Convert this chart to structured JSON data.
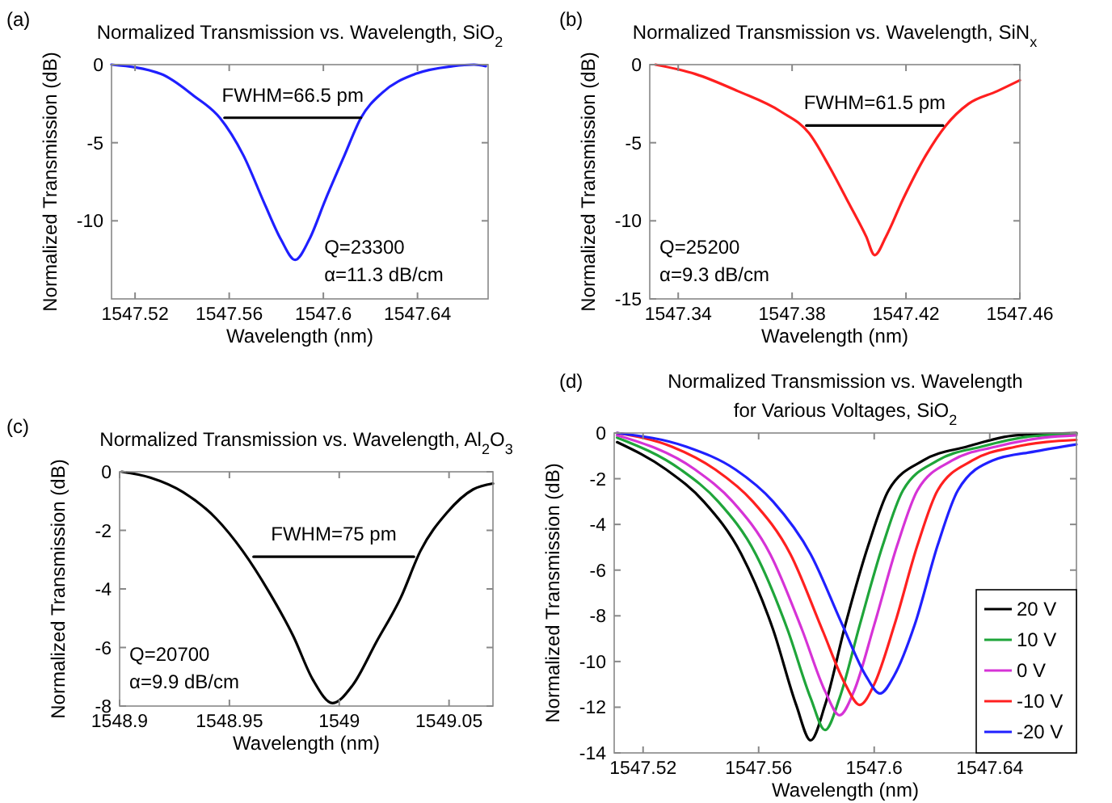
{
  "chart_data": [
    {
      "type": "line",
      "title": "Normalized Transmission vs. Wavelength, SiO$_{2}$",
      "xlabel": "Wavelength (nm)",
      "ylabel": "Normalized Transmission (dB)",
      "xlim": [
        1547.51,
        1547.67
      ],
      "xticks": [
        1547.52,
        1547.56,
        1547.6,
        1547.64
      ],
      "ylim": [
        -15,
        0
      ],
      "yticks": [
        -10,
        -5,
        0
      ],
      "grid": false,
      "legend": false,
      "series": [
        {
          "color": "#1f1fff",
          "x": [
            1547.51,
            1547.531,
            1547.545,
            1547.556,
            1547.566,
            1547.575,
            1547.582,
            1547.588,
            1547.594,
            1547.601,
            1547.609,
            1547.616,
            1547.625,
            1547.639,
            1547.655,
            1547.664,
            1547.669
          ],
          "values": [
            0,
            -0.6,
            -2.0,
            -3.4,
            -5.8,
            -8.9,
            -11.2,
            -12.5,
            -11.2,
            -8.6,
            -5.8,
            -3.4,
            -1.8,
            -0.6,
            -0.1,
            0,
            -0.1
          ]
        },
        {
          "color": "#000000",
          "x": [
            1547.558,
            1547.616
          ],
          "values": [
            -3.4,
            -3.4
          ]
        }
      ],
      "annotations": [
        "(a)",
        "FWHM=66.5 pm",
        "Q=23300",
        "α=11.3 dB/cm"
      ]
    },
    {
      "type": "line",
      "title": "Normalized Transmission vs. Wavelength, SiN$_{x}$",
      "xlabel": "Wavelength (nm)",
      "ylabel": "Normalized Transmission (dB)",
      "xlim": [
        1547.33,
        1547.46
      ],
      "xticks": [
        1547.34,
        1547.38,
        1547.42,
        1547.46
      ],
      "ylim": [
        -15,
        0
      ],
      "yticks": [
        -15,
        -10,
        -5,
        0
      ],
      "grid": false,
      "legend": false,
      "series": [
        {
          "color": "#ff1f1f",
          "x": [
            1547.332,
            1547.346,
            1547.361,
            1547.376,
            1547.386,
            1547.393,
            1547.4,
            1547.406,
            1547.409,
            1547.413,
            1547.419,
            1547.427,
            1547.434,
            1547.442,
            1547.452,
            1547.46
          ],
          "values": [
            0,
            -0.6,
            -1.7,
            -3.0,
            -4.4,
            -6.5,
            -8.9,
            -11.0,
            -12.2,
            -11.0,
            -8.6,
            -5.8,
            -3.9,
            -2.5,
            -1.7,
            -1.0
          ]
        },
        {
          "color": "#000000",
          "x": [
            1547.385,
            1547.433
          ],
          "values": [
            -3.9,
            -3.9
          ]
        }
      ],
      "annotations": [
        "(b)",
        "FWHM=61.5 pm",
        "Q=25200",
        "α=9.3 dB/cm"
      ]
    },
    {
      "type": "line",
      "title": "Normalized Transmission vs. Wavelength, Al$_{2}$O$_{3}$",
      "xlabel": "Wavelength (nm)",
      "ylabel": "Normalized Transmission (dB)",
      "xlim": [
        1548.9,
        1549.07
      ],
      "xticks": [
        1548.9,
        1548.95,
        1549,
        1549.05
      ],
      "ylim": [
        -8,
        0
      ],
      "yticks": [
        -8,
        -6,
        -4,
        -2,
        0
      ],
      "grid": false,
      "legend": false,
      "series": [
        {
          "color": "#000000",
          "x": [
            1548.901,
            1548.914,
            1548.929,
            1548.944,
            1548.956,
            1548.968,
            1548.979,
            1548.988,
            1548.997,
            1549.006,
            1549.017,
            1549.028,
            1549.037,
            1549.049,
            1549.061,
            1549.07
          ],
          "values": [
            0,
            -0.2,
            -0.7,
            -1.6,
            -2.7,
            -4.1,
            -5.6,
            -7.1,
            -7.9,
            -7.3,
            -5.8,
            -4.3,
            -2.7,
            -1.4,
            -0.6,
            -0.4
          ]
        },
        {
          "color": "#000000",
          "x": [
            1548.961,
            1549.034
          ],
          "values": [
            -2.9,
            -2.9
          ]
        }
      ],
      "annotations": [
        "(c)",
        "FWHM=75 pm",
        "Q=20700",
        "α=9.9 dB/cm"
      ]
    },
    {
      "type": "line",
      "title": "Normalized Transmission vs. Wavelength",
      "subtitle": "for Various Voltages, SiO$_{2}$",
      "xlabel": "Wavelength (nm)",
      "ylabel": "Normalized Transmission (dB)",
      "xlim": [
        1547.51,
        1547.67
      ],
      "xticks": [
        1547.52,
        1547.56,
        1547.6,
        1547.64
      ],
      "ylim": [
        -14,
        0
      ],
      "yticks": [
        -14,
        -12,
        -10,
        -8,
        -6,
        -4,
        -2,
        0
      ],
      "grid": false,
      "legend": "bottom right",
      "series": [
        {
          "name": "20 V",
          "color": "#000000",
          "x": [
            1547.511,
            1547.528,
            1547.541,
            1547.554,
            1547.565,
            1547.573,
            1547.578,
            1547.583,
            1547.59,
            1547.598,
            1547.605,
            1547.617,
            1547.632,
            1547.649,
            1547.67
          ],
          "values": [
            -0.4,
            -1.6,
            -3.0,
            -5.3,
            -8.6,
            -11.9,
            -13.45,
            -11.9,
            -8.4,
            -4.9,
            -2.5,
            -1.2,
            -0.6,
            -0.1,
            0
          ]
        },
        {
          "name": "10 V",
          "color": "#1fa53a",
          "x": [
            1547.511,
            1547.533,
            1547.546,
            1547.559,
            1547.57,
            1547.578,
            1547.583,
            1547.588,
            1547.595,
            1547.603,
            1547.61,
            1547.622,
            1547.637,
            1547.654,
            1547.67
          ],
          "values": [
            -0.2,
            -1.6,
            -3.0,
            -5.3,
            -8.6,
            -11.6,
            -13.0,
            -11.6,
            -8.4,
            -4.9,
            -2.5,
            -1.2,
            -0.6,
            -0.15,
            -0.05
          ]
        },
        {
          "name": "0 V",
          "color": "#d633d6",
          "x": [
            1547.511,
            1547.538,
            1547.551,
            1547.564,
            1547.575,
            1547.583,
            1547.588,
            1547.593,
            1547.6,
            1547.608,
            1547.615,
            1547.627,
            1547.642,
            1547.659,
            1547.67
          ],
          "values": [
            -0.1,
            -1.6,
            -3.0,
            -5.3,
            -8.6,
            -11.3,
            -12.35,
            -11.3,
            -8.4,
            -4.9,
            -2.5,
            -1.2,
            -0.6,
            -0.2,
            -0.1
          ]
        },
        {
          "name": "-10 V",
          "color": "#ff2020",
          "x": [
            1547.511,
            1547.53,
            1547.545,
            1547.558,
            1547.571,
            1547.582,
            1547.59,
            1547.595,
            1547.6,
            1547.607,
            1547.615,
            1547.622,
            1547.634,
            1547.649,
            1547.67
          ],
          "values": [
            0,
            -0.6,
            -1.6,
            -3.0,
            -5.3,
            -8.6,
            -11.0,
            -11.9,
            -11.0,
            -8.4,
            -4.9,
            -2.5,
            -1.2,
            -0.6,
            -0.3
          ]
        },
        {
          "name": "-20 V",
          "color": "#2020ff",
          "x": [
            1547.511,
            1547.535,
            1547.552,
            1547.565,
            1547.578,
            1547.589,
            1547.597,
            1547.602,
            1547.607,
            1547.614,
            1547.622,
            1547.629,
            1547.641,
            1547.656,
            1547.67
          ],
          "values": [
            0,
            -0.6,
            -1.6,
            -3.0,
            -5.3,
            -8.4,
            -10.6,
            -11.4,
            -10.6,
            -8.4,
            -4.9,
            -2.5,
            -1.2,
            -0.8,
            -0.5
          ]
        }
      ],
      "annotations": [
        "(d)"
      ]
    }
  ]
}
